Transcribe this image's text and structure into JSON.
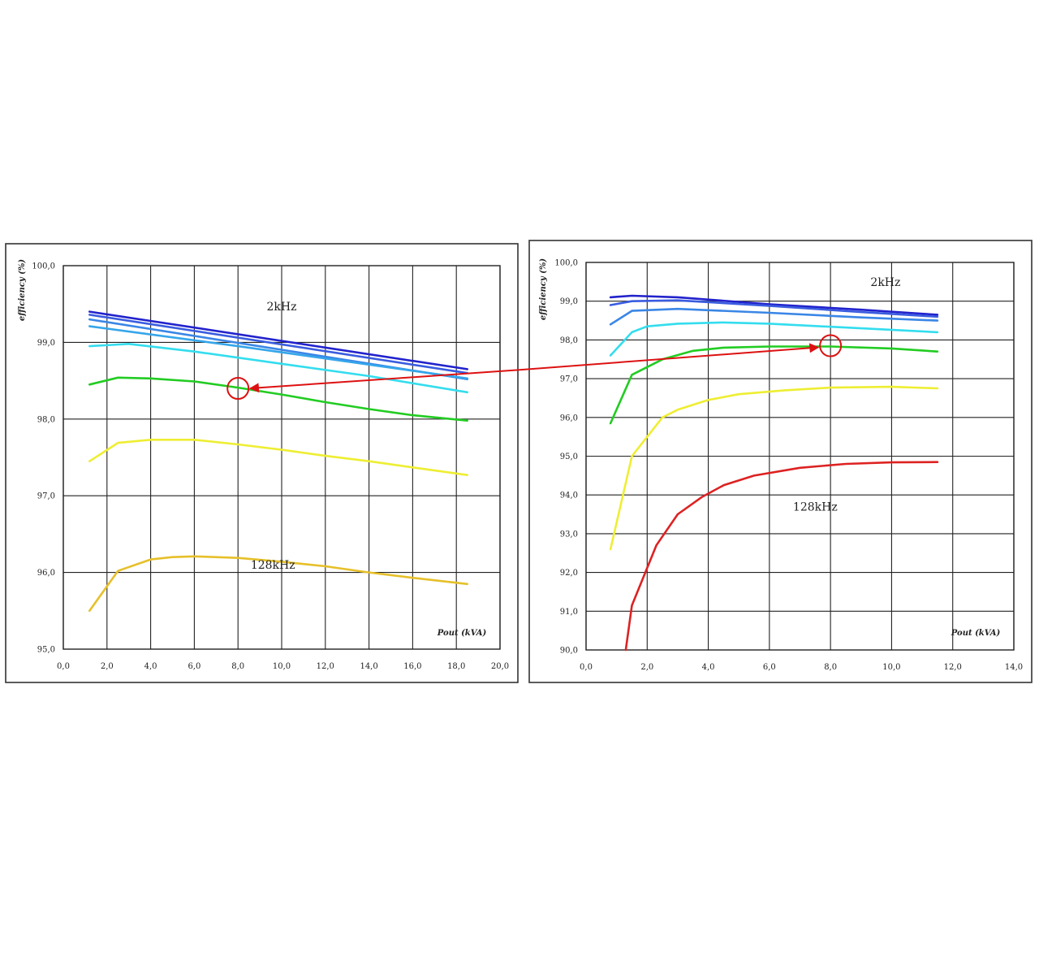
{
  "chart_data": [
    {
      "type": "line",
      "ylabel": "efficiency (%)",
      "xlabel": "Pout (kVA)",
      "xlim": [
        0,
        20
      ],
      "ylim": [
        95,
        100
      ],
      "xticks": [
        "0,0",
        "2,0",
        "4,0",
        "6,0",
        "8,0",
        "10,0",
        "12,0",
        "14,0",
        "16,0",
        "18,0",
        "20,0"
      ],
      "yticks": [
        "95,0",
        "96,0",
        "97,0",
        "98,0",
        "99,0",
        "100,0"
      ],
      "grid": true,
      "annotations": [
        {
          "text": "2kHz",
          "x": 10,
          "y": 99.47
        },
        {
          "text": "128kHz",
          "x": 9.6,
          "y": 96.1
        }
      ],
      "marker": {
        "x": 8.0,
        "y": 98.4
      },
      "series": [
        {
          "color": "#2222cc",
          "x": [
            1.2,
            18.5
          ],
          "y": [
            99.4,
            98.65
          ]
        },
        {
          "color": "#3a5ce0",
          "x": [
            1.2,
            18.5
          ],
          "y": [
            99.36,
            98.6
          ]
        },
        {
          "color": "#3a86e6",
          "x": [
            1.2,
            18.5
          ],
          "y": [
            99.3,
            98.52
          ]
        },
        {
          "color": "#35a6ea",
          "x": [
            1.2,
            8,
            18.5
          ],
          "y": [
            99.21,
            98.95,
            98.53
          ]
        },
        {
          "color": "#33ddee",
          "x": [
            1.2,
            3,
            6,
            10,
            14,
            18.5
          ],
          "y": [
            98.95,
            98.98,
            98.88,
            98.72,
            98.56,
            98.35
          ]
        },
        {
          "color": "#22cc22",
          "x": [
            1.2,
            2.5,
            4,
            6,
            8,
            10,
            12,
            14,
            16,
            18.5
          ],
          "y": [
            98.45,
            98.54,
            98.53,
            98.49,
            98.41,
            98.32,
            98.22,
            98.13,
            98.05,
            97.98
          ]
        },
        {
          "color": "#eeee33",
          "x": [
            1.2,
            2.5,
            4,
            6,
            8,
            10,
            12,
            14,
            16,
            18.5
          ],
          "y": [
            97.45,
            97.69,
            97.73,
            97.73,
            97.67,
            97.6,
            97.52,
            97.45,
            97.37,
            97.27
          ]
        },
        {
          "color": "#e6c02a",
          "x": [
            1.2,
            2.5,
            4,
            5,
            6,
            8,
            10,
            12,
            14,
            16,
            18.5
          ],
          "y": [
            95.5,
            96.02,
            96.17,
            96.2,
            96.21,
            96.19,
            96.14,
            96.08,
            96.0,
            95.93,
            95.85
          ]
        }
      ]
    },
    {
      "type": "line",
      "ylabel": "efficiency (%)",
      "xlabel": "Pout (kVA)",
      "xlim": [
        0,
        14
      ],
      "ylim": [
        90,
        100
      ],
      "xticks": [
        "0,0",
        "2,0",
        "4,0",
        "6,0",
        "8,0",
        "10,0",
        "12,0",
        "14,0"
      ],
      "yticks": [
        "90,0",
        "91,0",
        "92,0",
        "93,0",
        "94,0",
        "95,0",
        "96,0",
        "97,0",
        "98,0",
        "99,0",
        "100,0"
      ],
      "grid": true,
      "annotations": [
        {
          "text": "2kHz",
          "x": 9.8,
          "y": 99.5
        },
        {
          "text": "128kHz",
          "x": 7.5,
          "y": 93.7
        }
      ],
      "marker": {
        "x": 8.0,
        "y": 97.85
      },
      "series": [
        {
          "color": "#2222cc",
          "x": [
            0.8,
            1.5,
            3,
            6,
            9,
            11.5
          ],
          "y": [
            99.1,
            99.14,
            99.1,
            98.92,
            98.78,
            98.65
          ]
        },
        {
          "color": "#3a5ce0",
          "x": [
            0.8,
            1.5,
            3,
            6,
            9,
            11.5
          ],
          "y": [
            98.9,
            99.0,
            99.02,
            98.88,
            98.72,
            98.6
          ]
        },
        {
          "color": "#3a86e6",
          "x": [
            0.8,
            1.5,
            3,
            6,
            9,
            11.5
          ],
          "y": [
            98.4,
            98.75,
            98.8,
            98.7,
            98.58,
            98.5
          ]
        },
        {
          "color": "#33ddee",
          "x": [
            0.8,
            1.5,
            2,
            3,
            4.5,
            6,
            9,
            11.5
          ],
          "y": [
            97.6,
            98.2,
            98.35,
            98.42,
            98.45,
            98.42,
            98.3,
            98.2
          ]
        },
        {
          "color": "#22cc22",
          "x": [
            0.8,
            1.5,
            2.5,
            3.5,
            4.5,
            6,
            8,
            10,
            11.5
          ],
          "y": [
            95.85,
            97.1,
            97.5,
            97.72,
            97.8,
            97.83,
            97.83,
            97.78,
            97.7
          ]
        },
        {
          "color": "#eeee33",
          "x": [
            0.8,
            1.5,
            2,
            2.5,
            3,
            4,
            5,
            6.5,
            8,
            10,
            11.5
          ],
          "y": [
            92.6,
            95.0,
            95.5,
            96.0,
            96.2,
            96.45,
            96.6,
            96.7,
            96.77,
            96.79,
            96.75
          ]
        },
        {
          "color": "#dd2222",
          "x": [
            1.3,
            1.5,
            2.3,
            3,
            3.8,
            4.5,
            5.5,
            7,
            8.5,
            10,
            11.5
          ],
          "y": [
            90.0,
            91.15,
            92.7,
            93.5,
            93.95,
            94.25,
            94.5,
            94.7,
            94.8,
            94.84,
            94.85
          ]
        }
      ]
    }
  ]
}
